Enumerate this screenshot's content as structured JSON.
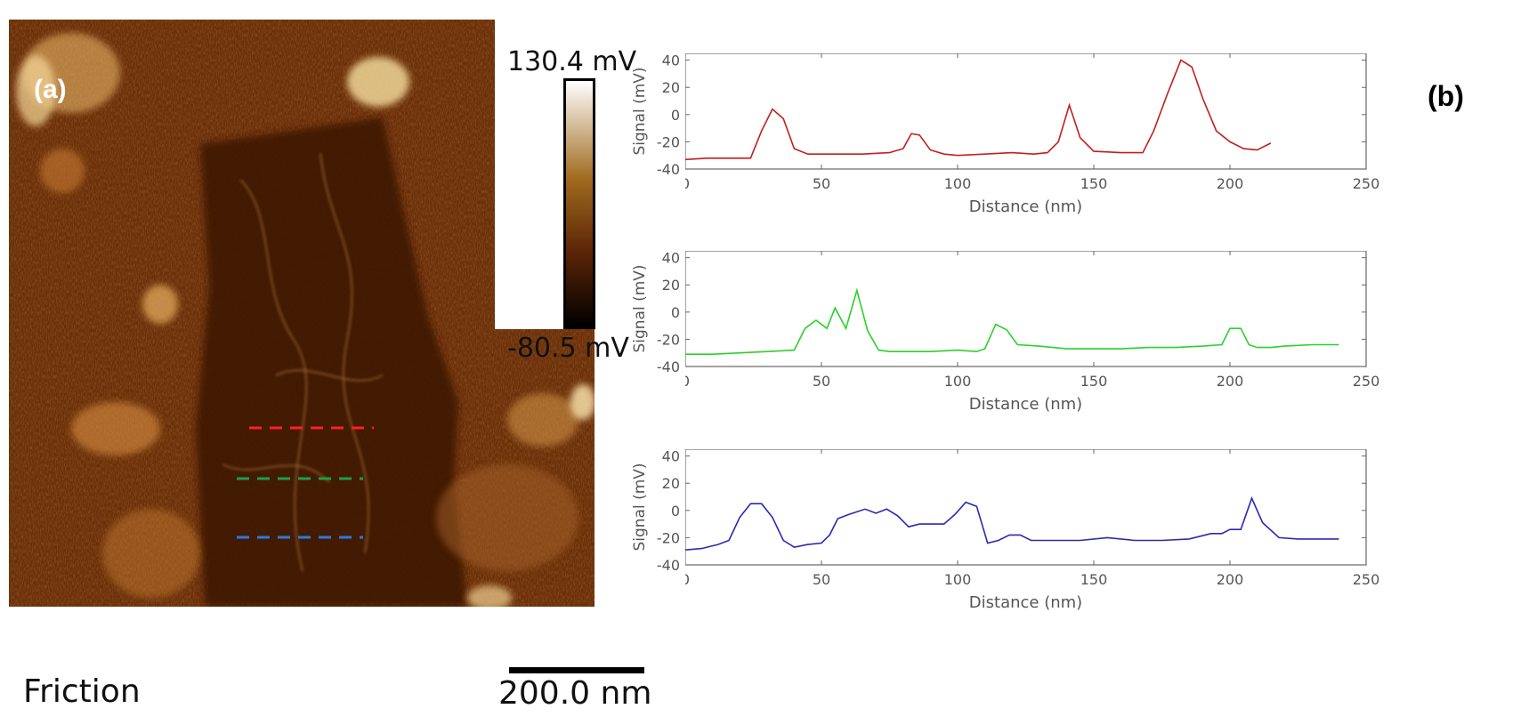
{
  "panel_a": {
    "label": "(a)",
    "colorbar": {
      "max_label": "130.4 mV",
      "min_label": "-80.5 mV",
      "colors": [
        "#ffffff",
        "#a06a1e",
        "#5a2406",
        "#000000"
      ]
    },
    "caption": "Friction",
    "scale_bar": "200.0 nm",
    "profile_lines": [
      {
        "color": "#ff2020",
        "name": "red-profile-line"
      },
      {
        "color": "#1aa04a",
        "name": "green-profile-line"
      },
      {
        "color": "#2a7ad8",
        "name": "blue-profile-line"
      }
    ]
  },
  "panel_b": {
    "label": "(b)"
  },
  "chart_data": [
    {
      "type": "line",
      "xlabel": "Distance (nm)",
      "ylabel": "Signal (mV)",
      "xlim": [
        0,
        250
      ],
      "ylim": [
        -40,
        45
      ],
      "xticks": [
        0,
        50,
        100,
        150,
        200,
        250
      ],
      "yticks": [
        -40,
        -20,
        0,
        20,
        40
      ],
      "color": "#c21f1f",
      "series": [
        {
          "x": [
            0,
            8,
            16,
            24,
            28,
            32,
            36,
            40,
            45,
            55,
            65,
            75,
            80,
            83,
            86,
            90,
            95,
            100,
            110,
            120,
            128,
            133,
            137,
            141,
            145,
            150,
            160,
            168,
            172,
            177,
            182,
            186,
            190,
            195,
            200,
            205,
            210,
            215
          ],
          "values": [
            -33,
            -32,
            -32,
            -32,
            -12,
            4,
            -3,
            -25,
            -29,
            -29,
            -29,
            -28,
            -25,
            -14,
            -15,
            -26,
            -29,
            -30,
            -29,
            -28,
            -29,
            -28,
            -20,
            7,
            -17,
            -27,
            -28,
            -28,
            -12,
            15,
            40,
            35,
            12,
            -12,
            -20,
            -25,
            -26,
            -21
          ]
        }
      ]
    },
    {
      "type": "line",
      "xlabel": "Distance (nm)",
      "ylabel": "Signal (mV)",
      "xlim": [
        0,
        250
      ],
      "ylim": [
        -40,
        45
      ],
      "xticks": [
        0,
        50,
        100,
        150,
        200,
        250
      ],
      "yticks": [
        -40,
        -20,
        0,
        20,
        40
      ],
      "color": "#2bd12b",
      "series": [
        {
          "x": [
            0,
            10,
            20,
            30,
            40,
            44,
            48,
            52,
            55,
            59,
            63,
            67,
            71,
            75,
            80,
            90,
            100,
            107,
            110,
            114,
            118,
            122,
            130,
            140,
            150,
            160,
            170,
            180,
            190,
            197,
            200,
            204,
            207,
            210,
            215,
            220,
            230,
            240
          ],
          "values": [
            -31,
            -31,
            -30,
            -29,
            -28,
            -12,
            -6,
            -12,
            3,
            -12,
            16,
            -14,
            -28,
            -29,
            -29,
            -29,
            -28,
            -29,
            -27,
            -9,
            -13,
            -24,
            -25,
            -27,
            -27,
            -27,
            -26,
            -26,
            -25,
            -24,
            -12,
            -12,
            -24,
            -26,
            -26,
            -25,
            -24,
            -24
          ]
        }
      ]
    },
    {
      "type": "line",
      "xlabel": "Distance (nm)",
      "ylabel": "Signal (mV)",
      "xlim": [
        0,
        250
      ],
      "ylim": [
        -40,
        45
      ],
      "xticks": [
        0,
        50,
        100,
        150,
        200,
        250
      ],
      "yticks": [
        -40,
        -20,
        0,
        20,
        40
      ],
      "color": "#2a2ab0",
      "series": [
        {
          "x": [
            0,
            6,
            12,
            16,
            20,
            24,
            28,
            32,
            36,
            40,
            45,
            50,
            53,
            56,
            60,
            66,
            70,
            74,
            78,
            82,
            86,
            90,
            95,
            99,
            103,
            107,
            111,
            115,
            119,
            123,
            127,
            135,
            145,
            155,
            165,
            175,
            185,
            193,
            197,
            200,
            204,
            208,
            212,
            218,
            225,
            232,
            240
          ],
          "values": [
            -29,
            -28,
            -25,
            -22,
            -5,
            5,
            5,
            -5,
            -22,
            -27,
            -25,
            -24,
            -18,
            -6,
            -3,
            1,
            -2,
            1,
            -4,
            -12,
            -10,
            -10,
            -10,
            -3,
            6,
            3,
            -24,
            -22,
            -18,
            -18,
            -22,
            -22,
            -22,
            -20,
            -22,
            -22,
            -21,
            -17,
            -17,
            -14,
            -14,
            9,
            -9,
            -20,
            -21,
            -21,
            -21
          ]
        }
      ]
    }
  ]
}
